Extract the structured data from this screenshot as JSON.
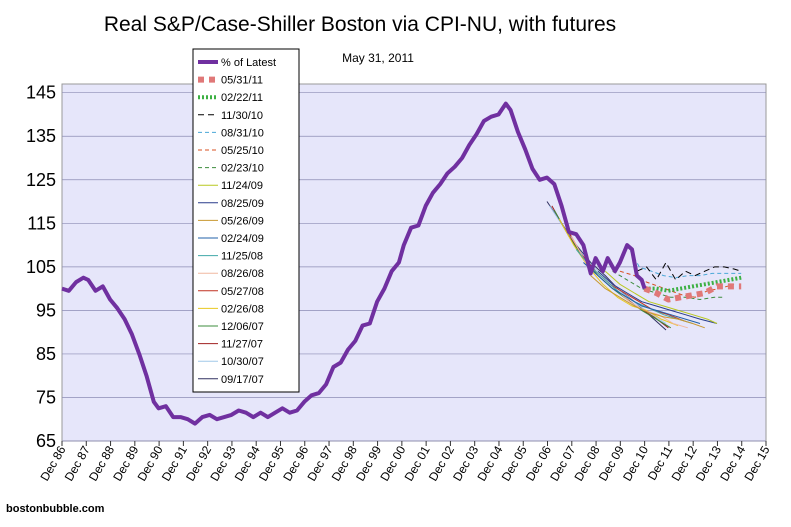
{
  "chart_data": {
    "type": "line",
    "title": "Real S&P/Case-Shiller Boston via CPI-NU, with futures",
    "subtitle": "May 31, 2011",
    "source": "bostonbubble.com",
    "xlabel": "",
    "ylabel": "",
    "ylim": [
      65,
      147
    ],
    "xlim": [
      1986.92,
      2015.92
    ],
    "yticks": [
      65,
      75,
      85,
      95,
      105,
      115,
      125,
      135,
      145
    ],
    "xticks": [
      "Dec 86",
      "Dec 87",
      "Dec 88",
      "Dec 89",
      "Dec 90",
      "Dec 91",
      "Dec 92",
      "Dec 93",
      "Dec 94",
      "Dec 95",
      "Dec 96",
      "Dec 97",
      "Dec 98",
      "Dec 99",
      "Dec 00",
      "Dec 01",
      "Dec 02",
      "Dec 03",
      "Dec 04",
      "Dec 05",
      "Dec 06",
      "Dec 07",
      "Dec 08",
      "Dec 09",
      "Dec 10",
      "Dec 11",
      "Dec 12",
      "Dec 13",
      "Dec 14",
      "Dec 15"
    ],
    "grid": true,
    "plot_background": "#e6e6fa",
    "legend_position": "top-left",
    "series": [
      {
        "name": "% of Latest",
        "color": "#7030a0",
        "style": "solid",
        "width": 4,
        "x": [
          1986.92,
          1987.2,
          1987.5,
          1987.8,
          1988.0,
          1988.3,
          1988.6,
          1988.9,
          1989.2,
          1989.5,
          1989.8,
          1990.1,
          1990.4,
          1990.7,
          1990.9,
          1991.2,
          1991.5,
          1991.8,
          1992.1,
          1992.4,
          1992.7,
          1993.0,
          1993.3,
          1993.6,
          1993.9,
          1994.2,
          1994.5,
          1994.8,
          1995.1,
          1995.4,
          1995.7,
          1996.0,
          1996.3,
          1996.6,
          1996.9,
          1997.2,
          1997.5,
          1997.8,
          1998.1,
          1998.4,
          1998.7,
          1999.0,
          1999.3,
          1999.6,
          1999.9,
          2000.2,
          2000.5,
          2000.8,
          2001.0,
          2001.3,
          2001.6,
          2001.9,
          2002.2,
          2002.5,
          2002.8,
          2003.1,
          2003.4,
          2003.7,
          2004.0,
          2004.3,
          2004.6,
          2004.9,
          2005.2,
          2005.4,
          2005.7,
          2006.0,
          2006.3,
          2006.6,
          2006.9,
          2007.2,
          2007.5,
          2007.8,
          2008.1,
          2008.4,
          2008.7,
          2008.9,
          2009.2,
          2009.4,
          2009.7,
          2009.9,
          2010.2,
          2010.4,
          2010.6,
          2010.8,
          2010.92
        ],
        "y": [
          100,
          99.5,
          101.5,
          102.5,
          102,
          99.5,
          100.5,
          97.5,
          95.5,
          93,
          89.5,
          85,
          80,
          74,
          72.5,
          73,
          70.5,
          70.5,
          70,
          69,
          70.5,
          71,
          70,
          70.5,
          71,
          72,
          71.5,
          70.5,
          71.5,
          70.5,
          71.5,
          72.5,
          71.5,
          72,
          74,
          75.5,
          76,
          78,
          82,
          83,
          86,
          88,
          91.5,
          92,
          97,
          100,
          104,
          106,
          110,
          114,
          114.5,
          119,
          122,
          124,
          126.5,
          128,
          130,
          133,
          135.5,
          138.5,
          139.5,
          140,
          142.5,
          141,
          136,
          132,
          127.5,
          125,
          125.5,
          124,
          119,
          113,
          112.5,
          110,
          103.5,
          107,
          104,
          107,
          104,
          106,
          110,
          109,
          103,
          102,
          100
        ]
      },
      {
        "name": "05/31/11",
        "color": "#e07878",
        "style": "square",
        "width": 6,
        "x": [
          2010.92,
          2011.4,
          2011.9,
          2012.4,
          2012.9,
          2013.4,
          2013.9,
          2014.4,
          2014.9
        ],
        "y": [
          100,
          99,
          97.5,
          98,
          98.5,
          99,
          100.5,
          100.5,
          100.5
        ]
      },
      {
        "name": "02/22/11",
        "color": "#3cb043",
        "style": "dotted",
        "width": 4,
        "x": [
          2010.92,
          2011.4,
          2011.9,
          2012.4,
          2012.9,
          2013.4,
          2013.9,
          2014.4,
          2014.9
        ],
        "y": [
          100,
          100,
          99.5,
          100,
          100.5,
          101,
          101.5,
          102,
          102.5
        ]
      },
      {
        "name": "11/30/10",
        "color": "#000000",
        "style": "dashed",
        "width": 1,
        "x": [
          2010.6,
          2011.0,
          2011.4,
          2011.8,
          2012.2,
          2012.6,
          2013.0,
          2013.4,
          2013.8,
          2014.2,
          2014.6,
          2014.9
        ],
        "y": [
          104,
          105,
          102,
          106,
          102,
          104,
          103,
          104,
          105,
          105,
          104.5,
          104
        ]
      },
      {
        "name": "08/31/10",
        "color": "#4aa8d8",
        "style": "dash",
        "width": 1,
        "x": [
          2010.2,
          2010.7,
          2011.2,
          2011.7,
          2012.2,
          2012.7,
          2013.2,
          2013.7,
          2014.2,
          2014.9
        ],
        "y": [
          110,
          105,
          104,
          103,
          102.5,
          103,
          103,
          103.5,
          103.5,
          103.5
        ]
      },
      {
        "name": "05/25/10",
        "color": "#d85020",
        "style": "dash",
        "width": 1,
        "x": [
          2009.9,
          2010.5,
          2011.0,
          2011.5,
          2012.0,
          2012.5,
          2013.0,
          2013.5,
          2014.0,
          2014.6
        ],
        "y": [
          104,
          103,
          101.5,
          100.5,
          99.5,
          98.5,
          98,
          99.5,
          100,
          101
        ]
      },
      {
        "name": "02/23/10",
        "color": "#3c8c3c",
        "style": "dash",
        "width": 1,
        "x": [
          2009.6,
          2010.2,
          2010.8,
          2011.4,
          2012.0,
          2012.6,
          2013.2,
          2013.8,
          2014.2
        ],
        "y": [
          104,
          102,
          100,
          99,
          98,
          98,
          97.5,
          98,
          98
        ]
      },
      {
        "name": "11/24/09",
        "color": "#b8c820",
        "style": "solid",
        "width": 1,
        "x": [
          2009.3,
          2009.9,
          2010.5,
          2011.1,
          2011.7,
          2012.3,
          2012.9,
          2013.5,
          2013.9
        ],
        "y": [
          104,
          101,
          99,
          97,
          96,
          95,
          94,
          93,
          92
        ]
      },
      {
        "name": "08/25/09",
        "color": "#283c8c",
        "style": "solid",
        "width": 1,
        "x": [
          2009.0,
          2009.6,
          2010.2,
          2010.8,
          2011.4,
          2012.0,
          2012.6,
          2013.2,
          2013.9
        ],
        "y": [
          104,
          101,
          99,
          97,
          96,
          95,
          94,
          93,
          92
        ]
      },
      {
        "name": "05/26/09",
        "color": "#c89830",
        "style": "solid",
        "width": 1,
        "x": [
          2008.7,
          2009.3,
          2009.9,
          2010.5,
          2011.1,
          2011.7,
          2012.3,
          2012.9,
          2013.4
        ],
        "y": [
          103,
          100,
          98,
          96,
          94.5,
          93.5,
          93,
          92,
          91
        ]
      },
      {
        "name": "02/24/09",
        "color": "#2060a8",
        "style": "solid",
        "width": 1,
        "x": [
          2008.4,
          2009.0,
          2009.6,
          2010.2,
          2010.8,
          2011.4,
          2012.0,
          2012.6,
          2013.2
        ],
        "y": [
          106,
          103,
          100,
          98,
          96,
          95,
          94,
          93,
          92
        ]
      },
      {
        "name": "11/25/08",
        "color": "#40a8a8",
        "style": "solid",
        "width": 1,
        "x": [
          2008.1,
          2008.7,
          2009.3,
          2009.9,
          2010.5,
          2011.1,
          2011.7,
          2012.3,
          2012.9
        ],
        "y": [
          109,
          105,
          102,
          99,
          97,
          95.5,
          94,
          93,
          92
        ]
      },
      {
        "name": "08/26/08",
        "color": "#f0b8a0",
        "style": "solid",
        "width": 1,
        "x": [
          2007.9,
          2008.5,
          2009.1,
          2009.7,
          2010.3,
          2010.9,
          2011.5,
          2012.1,
          2012.7
        ],
        "y": [
          112,
          106,
          103,
          100,
          97,
          95,
          94,
          92,
          91
        ]
      },
      {
        "name": "05/27/08",
        "color": "#c03020",
        "style": "solid",
        "width": 1,
        "x": [
          2007.7,
          2008.3,
          2008.9,
          2009.5,
          2010.1,
          2010.7,
          2011.3,
          2011.9,
          2012.6
        ],
        "y": [
          114,
          108,
          104,
          101,
          99,
          97,
          95,
          94,
          92.5
        ]
      },
      {
        "name": "02/26/08",
        "color": "#e8c820",
        "style": "solid",
        "width": 1,
        "x": [
          2007.4,
          2008.0,
          2008.6,
          2009.2,
          2009.8,
          2010.4,
          2011.0,
          2011.6,
          2012.3
        ],
        "y": [
          116,
          110,
          105,
          101,
          98,
          96,
          95,
          93,
          91.5
        ]
      },
      {
        "name": "12/06/07",
        "color": "#3c8c3c",
        "style": "solid",
        "width": 1,
        "x": [
          2007.2,
          2007.8,
          2008.4,
          2009.0,
          2009.6,
          2010.2,
          2010.8,
          2011.4,
          2012.0
        ],
        "y": [
          118,
          112,
          107,
          103,
          100,
          97.5,
          95,
          93,
          91
        ]
      },
      {
        "name": "11/27/07",
        "color": "#a02020",
        "style": "solid",
        "width": 1,
        "x": [
          2007.1,
          2007.7,
          2008.3,
          2008.9,
          2009.5,
          2010.1,
          2010.7,
          2011.3,
          2011.9
        ],
        "y": [
          119,
          113,
          108,
          104,
          101,
          98,
          95.5,
          93.5,
          91
        ]
      },
      {
        "name": "10/30/07",
        "color": "#a0c8e8",
        "style": "solid",
        "width": 1,
        "x": [
          2007.0,
          2007.6,
          2008.2,
          2008.8,
          2009.4,
          2010.0,
          2010.6,
          2011.2,
          2011.8
        ],
        "y": [
          119,
          114,
          109,
          105,
          102,
          99,
          96.5,
          94,
          92
        ]
      },
      {
        "name": "09/17/07",
        "color": "#303060",
        "style": "solid",
        "width": 1,
        "x": [
          2006.9,
          2007.5,
          2008.1,
          2008.7,
          2009.3,
          2009.9,
          2010.5,
          2011.1,
          2011.8
        ],
        "y": [
          120,
          115,
          110,
          106,
          103,
          99.5,
          97,
          94,
          90.5
        ]
      }
    ]
  }
}
